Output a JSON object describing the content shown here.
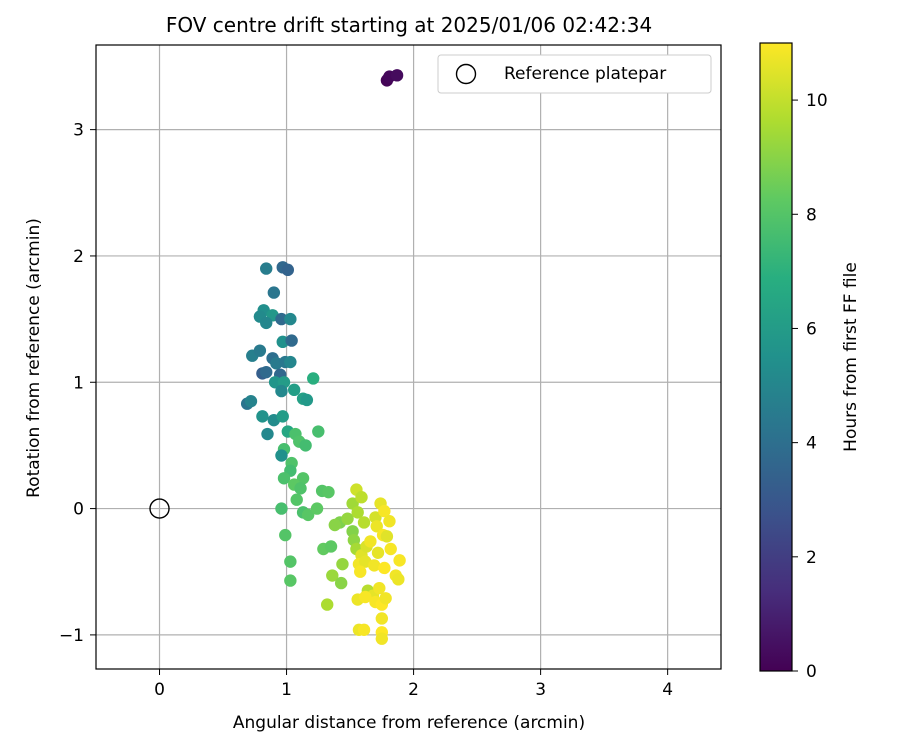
{
  "chart_data": {
    "type": "scatter",
    "title": "FOV centre drift starting at 2025/01/06 02:42:34",
    "xlabel": "Angular distance from reference (arcmin)",
    "ylabel": "Rotation from reference (arcmin)",
    "xlim": [
      -0.5,
      4.42
    ],
    "ylim": [
      -1.27,
      3.67
    ],
    "xticks": [
      0,
      1,
      2,
      3,
      4
    ],
    "yticks": [
      -1,
      0,
      1,
      2,
      3
    ],
    "xtick_labels": [
      "0",
      "1",
      "2",
      "3",
      "4"
    ],
    "ytick_labels": [
      "−1",
      "0",
      "1",
      "2",
      "3"
    ],
    "grid": true,
    "legend": {
      "position": "top-right",
      "entries": [
        {
          "label": "Reference platepar",
          "marker": "open-circle"
        }
      ]
    },
    "colorbar": {
      "label": "Hours from first FF file",
      "colormap": "viridis",
      "range": [
        0,
        11
      ],
      "ticks": [
        0,
        2,
        4,
        6,
        8,
        10
      ],
      "tick_labels": [
        "0",
        "2",
        "4",
        "6",
        "8",
        "10"
      ]
    },
    "reference_point": {
      "x": 0,
      "y": 0
    },
    "points": [
      {
        "x": 1.79,
        "y": 3.39,
        "c": 0.1
      },
      {
        "x": 1.81,
        "y": 3.42,
        "c": 0.2
      },
      {
        "x": 1.87,
        "y": 3.43,
        "c": 0.3
      },
      {
        "x": 0.84,
        "y": 1.9,
        "c": 4.6
      },
      {
        "x": 0.97,
        "y": 1.91,
        "c": 3.7
      },
      {
        "x": 1.01,
        "y": 1.89,
        "c": 3.5
      },
      {
        "x": 0.9,
        "y": 1.71,
        "c": 4.3
      },
      {
        "x": 0.82,
        "y": 1.57,
        "c": 5.4
      },
      {
        "x": 0.79,
        "y": 1.52,
        "c": 5.2
      },
      {
        "x": 0.89,
        "y": 1.53,
        "c": 5.8
      },
      {
        "x": 0.84,
        "y": 1.47,
        "c": 5.0
      },
      {
        "x": 0.96,
        "y": 1.5,
        "c": 3.8
      },
      {
        "x": 1.03,
        "y": 1.5,
        "c": 5.1
      },
      {
        "x": 0.97,
        "y": 1.32,
        "c": 5.5
      },
      {
        "x": 1.04,
        "y": 1.33,
        "c": 3.8
      },
      {
        "x": 0.73,
        "y": 1.21,
        "c": 4.7
      },
      {
        "x": 0.79,
        "y": 1.25,
        "c": 4.5
      },
      {
        "x": 0.89,
        "y": 1.19,
        "c": 4.0
      },
      {
        "x": 0.92,
        "y": 1.15,
        "c": 4.5
      },
      {
        "x": 0.99,
        "y": 1.16,
        "c": 4.4
      },
      {
        "x": 1.03,
        "y": 1.16,
        "c": 5.0
      },
      {
        "x": 0.81,
        "y": 1.07,
        "c": 3.3
      },
      {
        "x": 0.84,
        "y": 1.08,
        "c": 3.8
      },
      {
        "x": 0.95,
        "y": 1.06,
        "c": 3.7
      },
      {
        "x": 0.91,
        "y": 1.0,
        "c": 5.7
      },
      {
        "x": 0.98,
        "y": 1.0,
        "c": 6.0
      },
      {
        "x": 0.96,
        "y": 0.93,
        "c": 5.1
      },
      {
        "x": 1.06,
        "y": 0.94,
        "c": 6.1
      },
      {
        "x": 1.13,
        "y": 0.87,
        "c": 6.2
      },
      {
        "x": 1.16,
        "y": 0.86,
        "c": 5.9
      },
      {
        "x": 1.21,
        "y": 1.03,
        "c": 6.9
      },
      {
        "x": 0.69,
        "y": 0.83,
        "c": 4.2
      },
      {
        "x": 0.72,
        "y": 0.85,
        "c": 4.9
      },
      {
        "x": 0.81,
        "y": 0.73,
        "c": 5.6
      },
      {
        "x": 0.9,
        "y": 0.7,
        "c": 5.3
      },
      {
        "x": 0.97,
        "y": 0.73,
        "c": 6.0
      },
      {
        "x": 0.85,
        "y": 0.59,
        "c": 5.1
      },
      {
        "x": 1.01,
        "y": 0.61,
        "c": 6.5
      },
      {
        "x": 1.07,
        "y": 0.59,
        "c": 7.8
      },
      {
        "x": 1.1,
        "y": 0.53,
        "c": 7.9
      },
      {
        "x": 1.15,
        "y": 0.5,
        "c": 7.6
      },
      {
        "x": 0.98,
        "y": 0.47,
        "c": 7.7
      },
      {
        "x": 1.25,
        "y": 0.61,
        "c": 7.7
      },
      {
        "x": 0.96,
        "y": 0.42,
        "c": 5.5
      },
      {
        "x": 1.04,
        "y": 0.36,
        "c": 7.9
      },
      {
        "x": 1.03,
        "y": 0.3,
        "c": 7.6
      },
      {
        "x": 0.98,
        "y": 0.24,
        "c": 7.8
      },
      {
        "x": 1.13,
        "y": 0.24,
        "c": 8.0
      },
      {
        "x": 1.06,
        "y": 0.19,
        "c": 8.2
      },
      {
        "x": 1.11,
        "y": 0.16,
        "c": 7.9
      },
      {
        "x": 1.28,
        "y": 0.14,
        "c": 8.0
      },
      {
        "x": 1.33,
        "y": 0.13,
        "c": 8.1
      },
      {
        "x": 1.08,
        "y": 0.07,
        "c": 8.0
      },
      {
        "x": 0.96,
        "y": 0.0,
        "c": 7.7
      },
      {
        "x": 1.13,
        "y": -0.03,
        "c": 7.8
      },
      {
        "x": 1.17,
        "y": -0.05,
        "c": 8.1
      },
      {
        "x": 1.24,
        "y": 0.0,
        "c": 8.2
      },
      {
        "x": 0.99,
        "y": -0.21,
        "c": 8.0
      },
      {
        "x": 1.03,
        "y": -0.42,
        "c": 8.0
      },
      {
        "x": 1.03,
        "y": -0.57,
        "c": 8.1
      },
      {
        "x": 1.29,
        "y": -0.32,
        "c": 8.3
      },
      {
        "x": 1.35,
        "y": -0.3,
        "c": 8.2
      },
      {
        "x": 1.32,
        "y": -0.76,
        "c": 9.6
      },
      {
        "x": 1.36,
        "y": -0.53,
        "c": 9.3
      },
      {
        "x": 1.43,
        "y": -0.59,
        "c": 9.0
      },
      {
        "x": 1.44,
        "y": -0.44,
        "c": 9.2
      },
      {
        "x": 1.42,
        "y": -0.11,
        "c": 8.8
      },
      {
        "x": 1.38,
        "y": -0.13,
        "c": 9.0
      },
      {
        "x": 1.48,
        "y": -0.08,
        "c": 9.2
      },
      {
        "x": 1.52,
        "y": 0.04,
        "c": 9.4
      },
      {
        "x": 1.55,
        "y": 0.15,
        "c": 10.2
      },
      {
        "x": 1.59,
        "y": 0.09,
        "c": 9.9
      },
      {
        "x": 1.56,
        "y": -0.03,
        "c": 9.6
      },
      {
        "x": 1.61,
        "y": -0.11,
        "c": 9.8
      },
      {
        "x": 1.52,
        "y": -0.18,
        "c": 8.9
      },
      {
        "x": 1.53,
        "y": -0.25,
        "c": 9.1
      },
      {
        "x": 1.55,
        "y": -0.32,
        "c": 9.5
      },
      {
        "x": 1.59,
        "y": -0.37,
        "c": 10.5
      },
      {
        "x": 1.57,
        "y": -0.44,
        "c": 10.8
      },
      {
        "x": 1.62,
        "y": -0.42,
        "c": 10.6
      },
      {
        "x": 1.58,
        "y": -0.5,
        "c": 10.9
      },
      {
        "x": 1.63,
        "y": -0.3,
        "c": 10.4
      },
      {
        "x": 1.66,
        "y": -0.26,
        "c": 10.8
      },
      {
        "x": 1.7,
        "y": -0.07,
        "c": 10.3
      },
      {
        "x": 1.74,
        "y": 0.04,
        "c": 10.6
      },
      {
        "x": 1.77,
        "y": -0.02,
        "c": 10.9
      },
      {
        "x": 1.71,
        "y": -0.14,
        "c": 10.7
      },
      {
        "x": 1.76,
        "y": -0.21,
        "c": 10.9
      },
      {
        "x": 1.81,
        "y": -0.1,
        "c": 10.8
      },
      {
        "x": 1.79,
        "y": -0.22,
        "c": 10.5
      },
      {
        "x": 1.82,
        "y": -0.32,
        "c": 10.9
      },
      {
        "x": 1.72,
        "y": -0.35,
        "c": 10.6
      },
      {
        "x": 1.69,
        "y": -0.45,
        "c": 10.8
      },
      {
        "x": 1.77,
        "y": -0.47,
        "c": 11.0
      },
      {
        "x": 1.86,
        "y": -0.53,
        "c": 10.8
      },
      {
        "x": 1.89,
        "y": -0.41,
        "c": 10.9
      },
      {
        "x": 1.88,
        "y": -0.56,
        "c": 10.7
      },
      {
        "x": 1.64,
        "y": -0.65,
        "c": 9.8
      },
      {
        "x": 1.68,
        "y": -0.69,
        "c": 10.6
      },
      {
        "x": 1.73,
        "y": -0.63,
        "c": 10.8
      },
      {
        "x": 1.7,
        "y": -0.74,
        "c": 10.9
      },
      {
        "x": 1.75,
        "y": -0.76,
        "c": 11.0
      },
      {
        "x": 1.78,
        "y": -0.71,
        "c": 10.8
      },
      {
        "x": 1.56,
        "y": -0.72,
        "c": 10.7
      },
      {
        "x": 1.62,
        "y": -0.7,
        "c": 10.9
      },
      {
        "x": 1.75,
        "y": -0.87,
        "c": 10.8
      },
      {
        "x": 1.57,
        "y": -0.96,
        "c": 10.7
      },
      {
        "x": 1.61,
        "y": -0.96,
        "c": 10.9
      },
      {
        "x": 1.75,
        "y": -0.98,
        "c": 11.0
      },
      {
        "x": 1.75,
        "y": -1.03,
        "c": 10.8
      }
    ]
  }
}
